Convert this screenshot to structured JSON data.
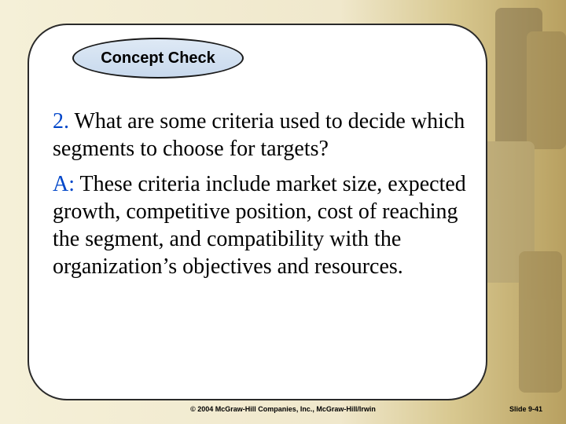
{
  "slide": {
    "badge_label": "Concept Check",
    "question_number": "2.",
    "question_text": " What are some criteria used to decide which segments to choose for targets?",
    "answer_label": "A:",
    "answer_text": " These criteria include market size, expected growth, competitive position, cost of reaching the segment, and compatibility with the organization’s objectives and resources.",
    "copyright": "© 2004 McGraw-Hill Companies, Inc., McGraw-Hill/Irwin",
    "slide_number": "Slide 9-41"
  },
  "styling": {
    "frame_bg": "#ffffff",
    "frame_border": "#2a2a2a",
    "bubble_bg": "#dee9f5",
    "bubble_border": "#1a1a1a",
    "accent_color": "#0046c9",
    "body_font_size": 28,
    "badge_font_size": 20,
    "badge_font_family": "Arial",
    "body_font_family": "Times New Roman",
    "slide_bg_gradient": [
      "#f5f0d8",
      "#b8a060"
    ]
  }
}
